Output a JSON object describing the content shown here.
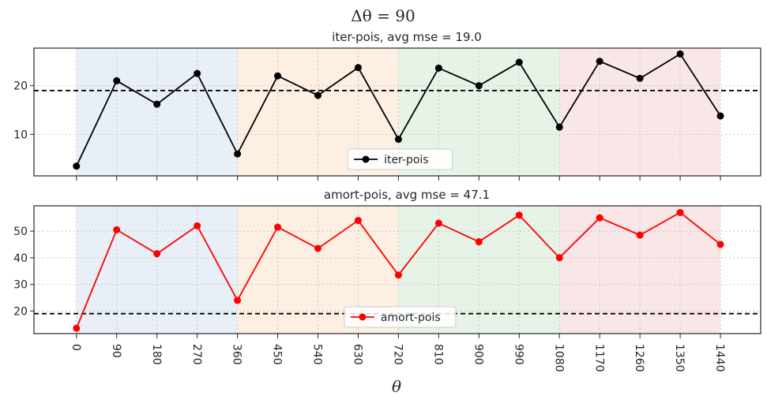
{
  "suptitle": "Δθ = 90",
  "xlabel": "θ",
  "colors": {
    "bands": [
      "#e8eff7",
      "#fdefe2",
      "#e8f3e7",
      "#f9e6e7"
    ],
    "iter": "#000000",
    "amort": "#ff0000",
    "reference_line": "#000000",
    "grid": "#c8c8c8"
  },
  "chart_data": [
    {
      "type": "line",
      "title": "iter-pois, avg mse = 19.0",
      "x": [
        0,
        90,
        180,
        270,
        360,
        450,
        540,
        630,
        720,
        810,
        900,
        990,
        1080,
        1170,
        1260,
        1350,
        1440
      ],
      "series": [
        {
          "name": "iter-pois",
          "color": "#000000",
          "values": [
            3.5,
            21.0,
            16.2,
            22.5,
            6.0,
            22.0,
            18.0,
            23.7,
            9.0,
            23.6,
            20.0,
            24.8,
            11.5,
            25.0,
            21.5,
            26.5,
            13.8
          ]
        }
      ],
      "reference_line": 19.0,
      "bands": [
        [
          0,
          360
        ],
        [
          360,
          720
        ],
        [
          720,
          1080
        ],
        [
          1080,
          1440
        ]
      ],
      "ylim": [
        1.5,
        27.7
      ],
      "yticks": [
        10,
        20
      ],
      "legend": "lower-center",
      "grid": true
    },
    {
      "type": "line",
      "title": "amort-pois, avg mse = 47.1",
      "x": [
        0,
        90,
        180,
        270,
        360,
        450,
        540,
        630,
        720,
        810,
        900,
        990,
        1080,
        1170,
        1260,
        1350,
        1440
      ],
      "series": [
        {
          "name": "amort-pois",
          "color": "#ff0000",
          "values": [
            13.5,
            50.5,
            41.5,
            52.0,
            24.0,
            51.5,
            43.5,
            54.0,
            33.5,
            53.0,
            46.0,
            56.0,
            40.0,
            55.0,
            48.5,
            57.0,
            45.0
          ]
        }
      ],
      "reference_line": 19.0,
      "bands": [
        [
          0,
          360
        ],
        [
          360,
          720
        ],
        [
          720,
          1080
        ],
        [
          1080,
          1440
        ]
      ],
      "ylim": [
        11.5,
        59.5
      ],
      "yticks": [
        20,
        30,
        40,
        50
      ],
      "xticks": [
        0,
        90,
        180,
        270,
        360,
        450,
        540,
        630,
        720,
        810,
        900,
        990,
        1080,
        1170,
        1260,
        1350,
        1440
      ],
      "legend": "lower-center",
      "grid": true
    }
  ]
}
